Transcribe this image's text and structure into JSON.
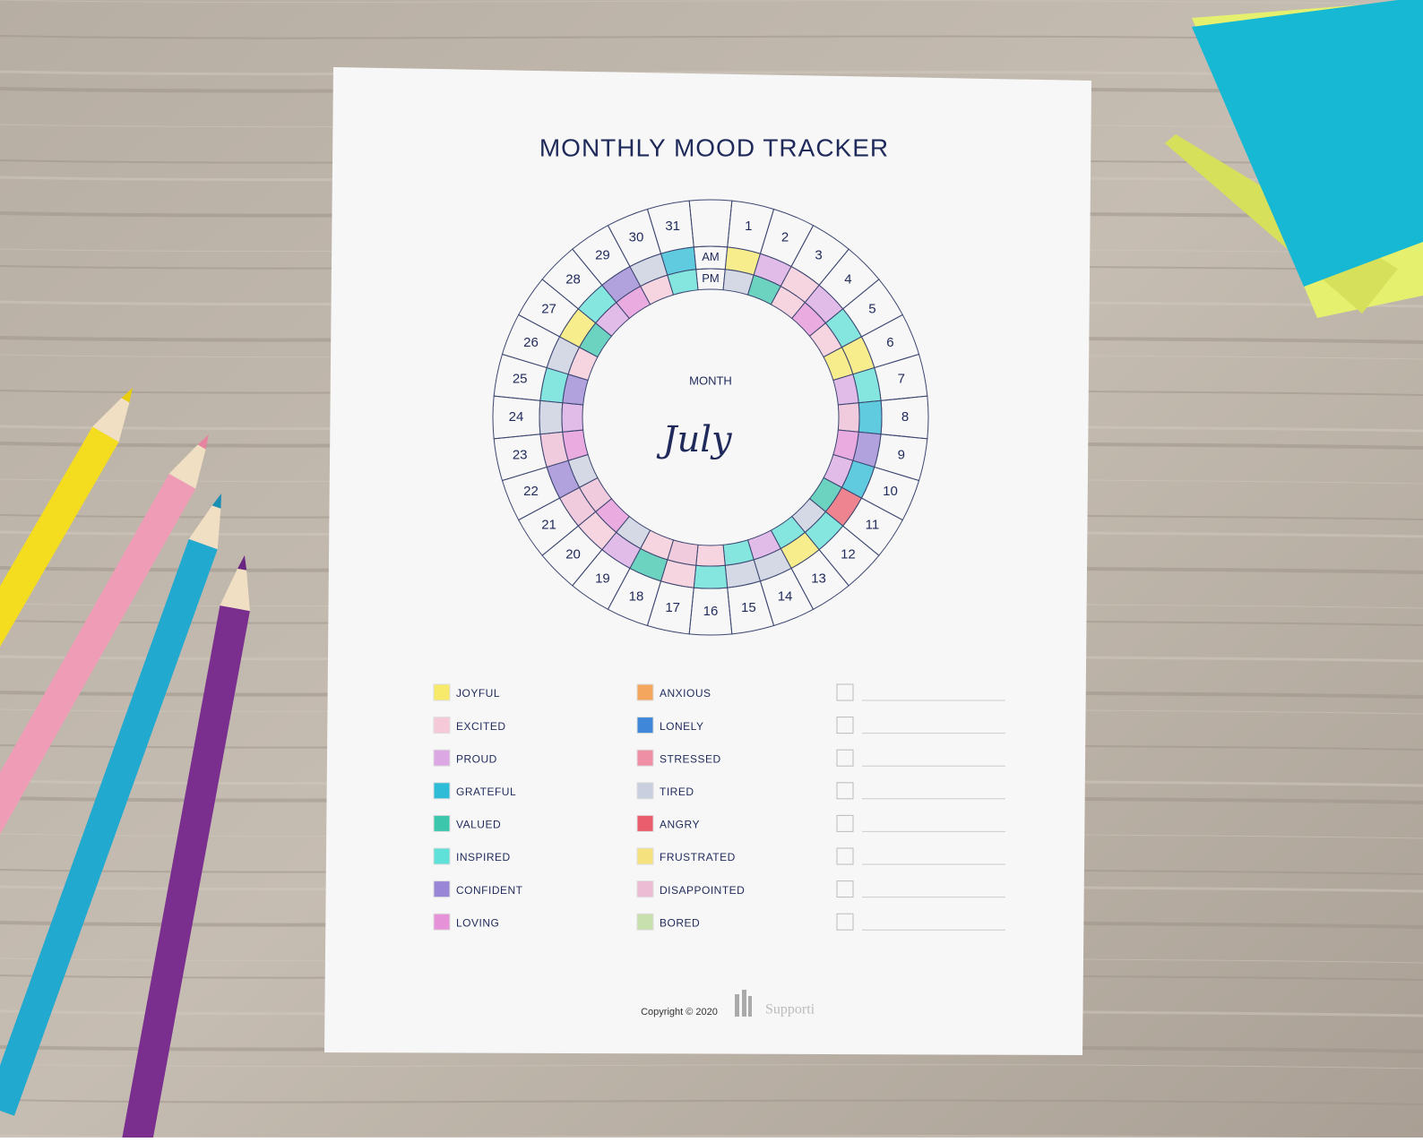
{
  "header": {
    "title": "MONTHLY MOOD TRACKER"
  },
  "tracker": {
    "days": [
      1,
      2,
      3,
      4,
      5,
      6,
      7,
      8,
      9,
      10,
      11,
      12,
      13,
      14,
      15,
      16,
      17,
      18,
      19,
      20,
      21,
      22,
      23,
      24,
      25,
      26,
      27,
      28,
      29,
      30,
      31
    ],
    "am_label": "AM",
    "pm_label": "PM",
    "center_label": "MONTH",
    "month": "July"
  },
  "legend": {
    "left": [
      {
        "label": "JOYFUL",
        "color": "#f7ea6a"
      },
      {
        "label": "EXCITED",
        "color": "#f6c9d8"
      },
      {
        "label": "PROUD",
        "color": "#dba8e4"
      },
      {
        "label": "GRATEFUL",
        "color": "#2ebcd6"
      },
      {
        "label": "VALUED",
        "color": "#3cc7ad"
      },
      {
        "label": "INSPIRED",
        "color": "#5fe0d8"
      },
      {
        "label": "CONFIDENT",
        "color": "#9a86d6"
      },
      {
        "label": "LOVING",
        "color": "#e592d8"
      }
    ],
    "right": [
      {
        "label": "ANXIOUS",
        "color": "#f4a55e"
      },
      {
        "label": "LONELY",
        "color": "#3f87d8"
      },
      {
        "label": "STRESSED",
        "color": "#ee8fa6"
      },
      {
        "label": "TIRED",
        "color": "#c9cfdf"
      },
      {
        "label": "ANGRY",
        "color": "#ea5d6c"
      },
      {
        "label": "FRUSTRATED",
        "color": "#f5e27e"
      },
      {
        "label": "DISAPPOINTED",
        "color": "#ecbcd4"
      },
      {
        "label": "BORED",
        "color": "#c8dfae"
      }
    ]
  },
  "footer": {
    "copyright": "Copyright © 2020",
    "brand": "Supporti"
  }
}
